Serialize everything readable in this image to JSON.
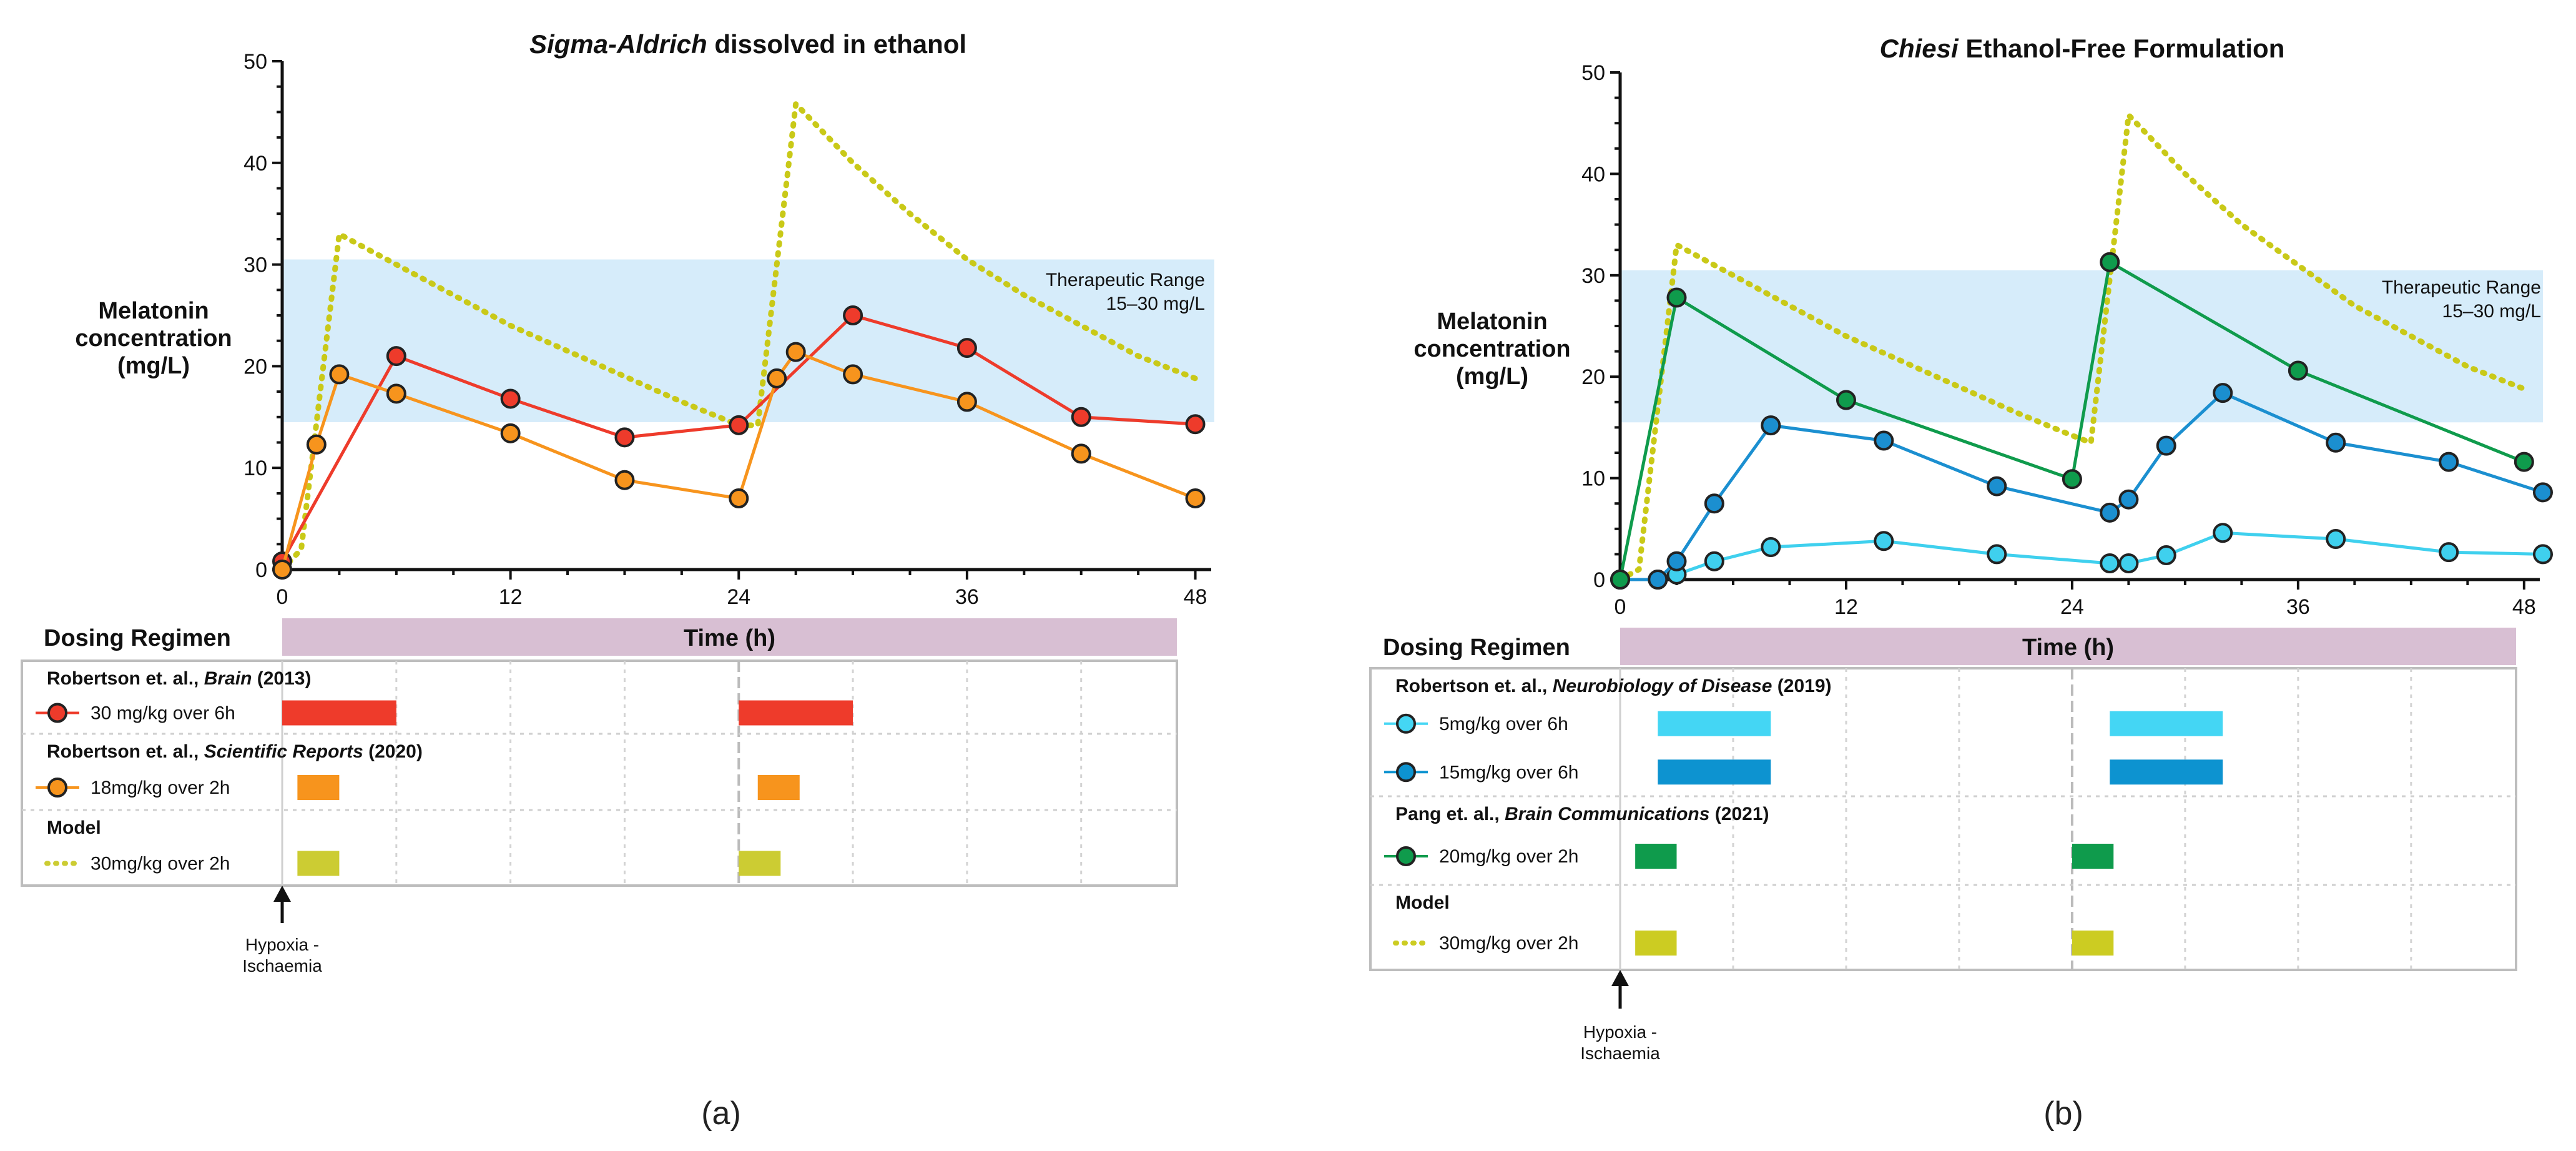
{
  "chart_data": [
    {
      "type": "line",
      "panel_label": "(a)",
      "title": "Sigma-Aldrich dissolved in ethanol",
      "title_parts": {
        "italic": "Sigma-Aldrich",
        "normal": " dissolved in ethanol"
      },
      "ylabel": [
        "Melatonin",
        "concentration",
        "(mg/L)"
      ],
      "xlabel": "Time (h)",
      "ylim": [
        0,
        50
      ],
      "xlim": [
        0,
        49
      ],
      "yticks": [
        0,
        10,
        20,
        30,
        40,
        50
      ],
      "xticks": [
        0,
        12,
        24,
        36,
        48
      ],
      "therapeutic_range": {
        "label": [
          "Therapeutic Range",
          "15–30 mg/L"
        ],
        "y0": 14.5,
        "y1": 30.5,
        "color": "#d6ecfa"
      },
      "series": [
        {
          "name": "30 mg/kg over 6h",
          "style": "marker-line",
          "color": "#ee3b2b",
          "x": [
            0,
            6,
            12,
            18,
            24,
            30,
            36,
            42,
            48
          ],
          "y": [
            0.8,
            21,
            16.8,
            13,
            14.2,
            25,
            21.8,
            15,
            14.3
          ]
        },
        {
          "name": "18mg/kg over 2h",
          "style": "marker-line",
          "color": "#f7941d",
          "x": [
            0,
            1.8,
            3,
            6,
            12,
            18,
            24,
            26,
            27,
            30,
            36,
            42,
            48
          ],
          "y": [
            0,
            12.3,
            19.2,
            17.3,
            13.4,
            8.8,
            7,
            18.8,
            21.4,
            19.2,
            16.5,
            11.4,
            7
          ]
        },
        {
          "name": "30mg/kg over 2h",
          "style": "dotted",
          "color": "#c9c918",
          "x": [
            0,
            1,
            3,
            6,
            9,
            12,
            15,
            18,
            21,
            24,
            25,
            27,
            30,
            33,
            36,
            39,
            42,
            45,
            48
          ],
          "y": [
            0,
            2,
            33,
            30,
            27,
            24,
            21.5,
            19,
            16.5,
            14.2,
            14.2,
            45.8,
            40,
            35,
            30.5,
            27,
            24,
            21,
            18.8
          ]
        }
      ],
      "dosing_regimen": {
        "header_left": "Dosing Regimen",
        "header_right": "Time (h)",
        "hypoxia_label": [
          "Hypoxia -",
          "Ischaemia"
        ],
        "groups": [
          {
            "title_parts": [
              [
                "Robertson et. al., ",
                false
              ],
              [
                "Brain",
                true
              ],
              [
                " (2013)",
                false
              ]
            ],
            "rows": [
              {
                "label": "30 mg/kg over 6h",
                "marker": "circle",
                "color": "#ee3b2b",
                "bars": [
                  [
                    0,
                    6
                  ],
                  [
                    24,
                    30
                  ]
                ]
              }
            ]
          },
          {
            "title_parts": [
              [
                "Robertson et. al., ",
                false
              ],
              [
                "Scientific Reports",
                true
              ],
              [
                " (2020)",
                false
              ]
            ],
            "rows": [
              {
                "label": "18mg/kg over 2h",
                "marker": "circle",
                "color": "#f7941d",
                "bars": [
                  [
                    0.8,
                    3
                  ],
                  [
                    25,
                    27.2
                  ]
                ]
              }
            ]
          },
          {
            "title_parts": [
              [
                "Model",
                false
              ]
            ],
            "rows": [
              {
                "label": "30mg/kg over 2h",
                "marker": "dots",
                "color": "#cccc33",
                "bars": [
                  [
                    0.8,
                    3
                  ],
                  [
                    24,
                    26.2
                  ]
                ]
              }
            ]
          }
        ]
      }
    },
    {
      "type": "line",
      "panel_label": "(b)",
      "title": "Chiesi Ethanol-Free Formulation",
      "title_parts": {
        "italic": "Chiesi",
        "normal": " Ethanol-Free Formulation"
      },
      "ylabel": [
        "Melatonin",
        "concentration",
        "(mg/L)"
      ],
      "xlabel": "Time (h)",
      "ylim": [
        0,
        50
      ],
      "xlim": [
        0,
        49
      ],
      "yticks": [
        0,
        10,
        20,
        30,
        40,
        50
      ],
      "xticks": [
        0,
        12,
        24,
        36,
        48
      ],
      "therapeutic_range": {
        "label": [
          "Therapeutic Range",
          "15–30 mg/L"
        ],
        "y0": 15.5,
        "y1": 30.5,
        "color": "#d6ecfa"
      },
      "series": [
        {
          "name": "5mg/kg over 6h",
          "style": "marker-line",
          "color": "#3fd0ee",
          "x": [
            0,
            2,
            3,
            5,
            8,
            14,
            20,
            26,
            27,
            29,
            32,
            38,
            44,
            49
          ],
          "y": [
            0,
            0,
            0.5,
            1.8,
            3.2,
            3.8,
            2.5,
            1.6,
            1.6,
            2.4,
            4.6,
            4,
            2.7,
            2.5
          ]
        },
        {
          "name": "15mg/kg over 6h",
          "style": "marker-line",
          "color": "#1b8fd0",
          "x": [
            0,
            2,
            3,
            5,
            8,
            14,
            20,
            26,
            27,
            29,
            32,
            38,
            44,
            49
          ],
          "y": [
            0,
            0,
            1.8,
            7.5,
            15.2,
            13.7,
            9.2,
            6.6,
            7.9,
            13.2,
            18.4,
            13.5,
            11.6,
            8.6
          ]
        },
        {
          "name": "20mg/kg over 2h",
          "style": "marker-line",
          "color": "#0f9b4c",
          "x": [
            0,
            3,
            12,
            24,
            26,
            36,
            48
          ],
          "y": [
            0,
            27.8,
            17.7,
            9.9,
            31.3,
            20.6,
            11.6
          ]
        },
        {
          "name": "30mg/kg over 2h",
          "style": "dotted",
          "color": "#c9c918",
          "x": [
            0,
            1,
            3,
            6,
            9,
            12,
            15,
            18,
            21,
            24,
            25,
            27,
            30,
            33,
            36,
            39,
            42,
            45,
            48
          ],
          "y": [
            0,
            1,
            33,
            30,
            27,
            24,
            21.5,
            19,
            16.5,
            14.2,
            13.5,
            45.8,
            40,
            35,
            31,
            27,
            24,
            21,
            18.8
          ]
        }
      ],
      "dosing_regimen": {
        "header_left": "Dosing Regimen",
        "header_right": "Time (h)",
        "hypoxia_label": [
          "Hypoxia -",
          "Ischaemia"
        ],
        "groups": [
          {
            "title_parts": [
              [
                "Robertson et. al., ",
                false
              ],
              [
                "Neurobiology of Disease",
                true
              ],
              [
                " (2019)",
                false
              ]
            ],
            "rows": [
              {
                "label": "5mg/kg over 6h",
                "marker": "circle",
                "color": "#44d6f4",
                "bars": [
                  [
                    2,
                    8
                  ],
                  [
                    26,
                    32
                  ]
                ]
              },
              {
                "label": "15mg/kg over 6h",
                "marker": "circle",
                "color": "#0d93d0",
                "bars": [
                  [
                    2,
                    8
                  ],
                  [
                    26,
                    32
                  ]
                ]
              }
            ]
          },
          {
            "title_parts": [
              [
                "Pang et. al., ",
                false
              ],
              [
                "Brain Communications",
                true
              ],
              [
                " (2021)",
                false
              ]
            ],
            "rows": [
              {
                "label": "20mg/kg over 2h",
                "marker": "circle",
                "color": "#0f9b4c",
                "bars": [
                  [
                    0.8,
                    3
                  ],
                  [
                    24,
                    26.2
                  ]
                ]
              }
            ]
          },
          {
            "title_parts": [
              [
                "Model",
                false
              ]
            ],
            "rows": [
              {
                "label": "30mg/kg over 2h",
                "marker": "dots",
                "color": "#cccc22",
                "bars": [
                  [
                    0.8,
                    3
                  ],
                  [
                    24,
                    26.2
                  ]
                ]
              }
            ]
          }
        ]
      }
    }
  ]
}
